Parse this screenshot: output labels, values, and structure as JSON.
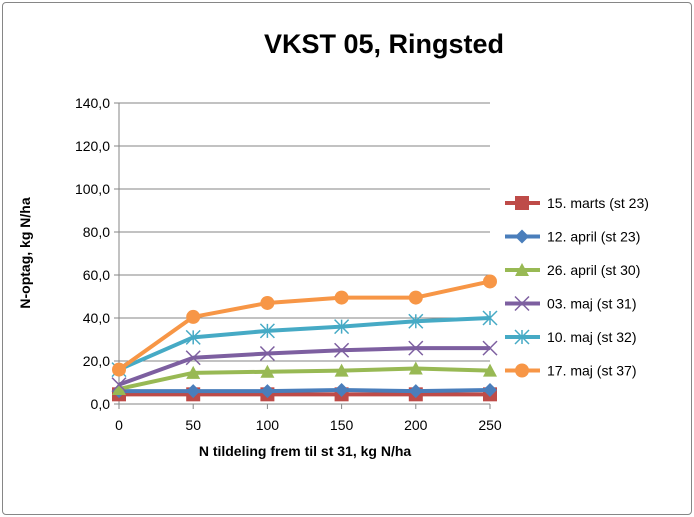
{
  "chart_data": {
    "type": "line",
    "title": "VKST 05, Ringsted",
    "xlabel": "N tildeling frem til st 31, kg N/ha",
    "ylabel": "N-optag, kg N/ha",
    "x": [
      0,
      50,
      100,
      150,
      200,
      250
    ],
    "xticks": [
      "0",
      "50",
      "100",
      "150",
      "200",
      "250"
    ],
    "ylim": [
      0,
      140
    ],
    "yticks": [
      "0,0",
      "20,0",
      "40,0",
      "60,0",
      "80,0",
      "100,0",
      "120,0",
      "140,0"
    ],
    "grid": true,
    "legend_position": "right",
    "series": [
      {
        "name": "15. marts (st 23)",
        "color": "#BE4B48",
        "marker": "square",
        "values": [
          4.5,
          4.5,
          4.5,
          4.5,
          4.5,
          4.5
        ]
      },
      {
        "name": "12. april (st 23)",
        "color": "#4A7EBB",
        "marker": "diamond",
        "values": [
          6,
          6,
          6,
          6.5,
          6,
          6.5
        ]
      },
      {
        "name": "26. april (st 30)",
        "color": "#98B954",
        "marker": "triangle",
        "values": [
          7,
          14.5,
          15,
          15.5,
          16.5,
          15.5
        ]
      },
      {
        "name": "03. maj (st 31)",
        "color": "#7D5FA0",
        "marker": "x",
        "values": [
          9,
          21.5,
          23.5,
          25,
          26,
          26
        ]
      },
      {
        "name": "10. maj (st 32)",
        "color": "#46AAC5",
        "marker": "star",
        "values": [
          16,
          31,
          34,
          36,
          38.5,
          40
        ]
      },
      {
        "name": "17. maj (st 37)",
        "color": "#F79646",
        "marker": "circle",
        "values": [
          16,
          40.5,
          47,
          49.5,
          49.5,
          57
        ]
      }
    ]
  }
}
